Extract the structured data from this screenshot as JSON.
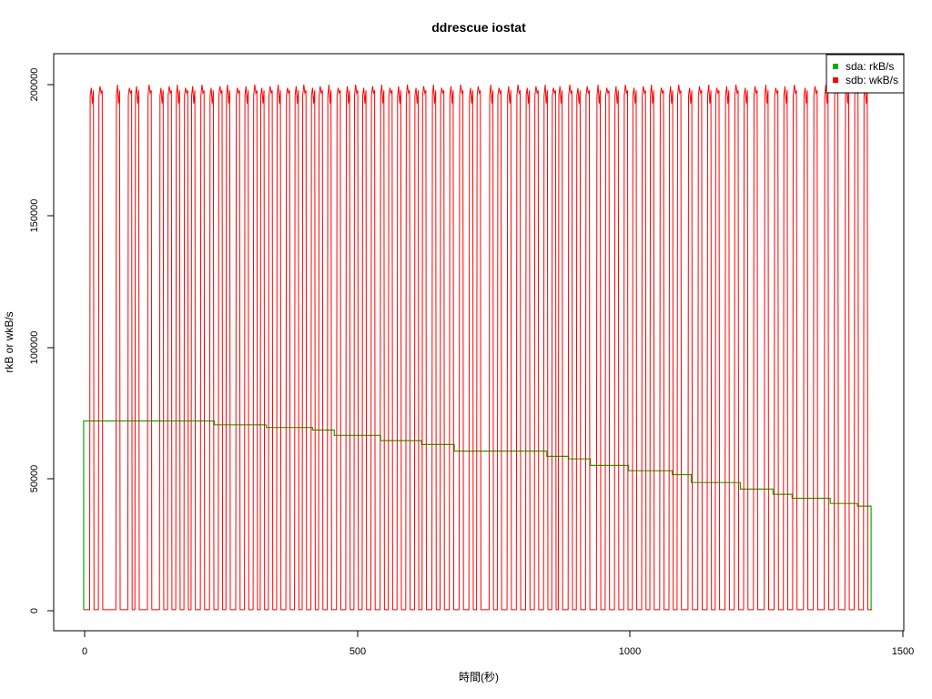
{
  "chart_data": {
    "type": "line",
    "title": "ddrescue iostat",
    "xlabel": "時間(秒)",
    "ylabel": "rkB or wkB/s",
    "xlim": [
      -55,
      1505
    ],
    "ylim": [
      -8000,
      212000
    ],
    "x_ticks": [
      "0",
      "500",
      "1000",
      "1500"
    ],
    "y_ticks": [
      "0",
      "50000",
      "100000",
      "150000",
      "200000"
    ],
    "legend_position": "top-right",
    "series": [
      {
        "name": "sda: rkB/s",
        "color": "#00b000",
        "steps": [
          {
            "x": 0,
            "y": 72000
          },
          {
            "x": 240,
            "y": 70500
          },
          {
            "x": 335,
            "y": 69500
          },
          {
            "x": 420,
            "y": 68500
          },
          {
            "x": 460,
            "y": 66500
          },
          {
            "x": 545,
            "y": 64500
          },
          {
            "x": 620,
            "y": 63000
          },
          {
            "x": 680,
            "y": 60500
          },
          {
            "x": 850,
            "y": 58500
          },
          {
            "x": 890,
            "y": 57500
          },
          {
            "x": 930,
            "y": 55000
          },
          {
            "x": 1000,
            "y": 53000
          },
          {
            "x": 1080,
            "y": 51500
          },
          {
            "x": 1115,
            "y": 48500
          },
          {
            "x": 1205,
            "y": 46000
          },
          {
            "x": 1265,
            "y": 44000
          },
          {
            "x": 1300,
            "y": 42500
          },
          {
            "x": 1370,
            "y": 40500
          },
          {
            "x": 1420,
            "y": 39500
          },
          {
            "x": 1445,
            "y": 0
          }
        ]
      },
      {
        "name": "sdb: wkB/s",
        "color": "#ff0000",
        "peak": 200000,
        "bursts": [
          12,
          28,
          60,
          82,
          95,
          118,
          140,
          155,
          170,
          185,
          198,
          215,
          232,
          248,
          262,
          280,
          296,
          312,
          325,
          340,
          355,
          372,
          388,
          402,
          418,
          432,
          448,
          465,
          482,
          497,
          512,
          528,
          545,
          560,
          576,
          592,
          608,
          622,
          640,
          655,
          672,
          690,
          708,
          722,
          745,
          760,
          778,
          795,
          812,
          828,
          845,
          860,
          872,
          890,
          905,
          922,
          942,
          958,
          975,
          992,
          1008,
          1025,
          1040,
          1058,
          1075,
          1090,
          1110,
          1128,
          1145,
          1160,
          1178,
          1195,
          1212,
          1230,
          1250,
          1268,
          1285,
          1302,
          1322,
          1340,
          1360,
          1378,
          1398,
          1415,
          1432
        ]
      }
    ]
  }
}
